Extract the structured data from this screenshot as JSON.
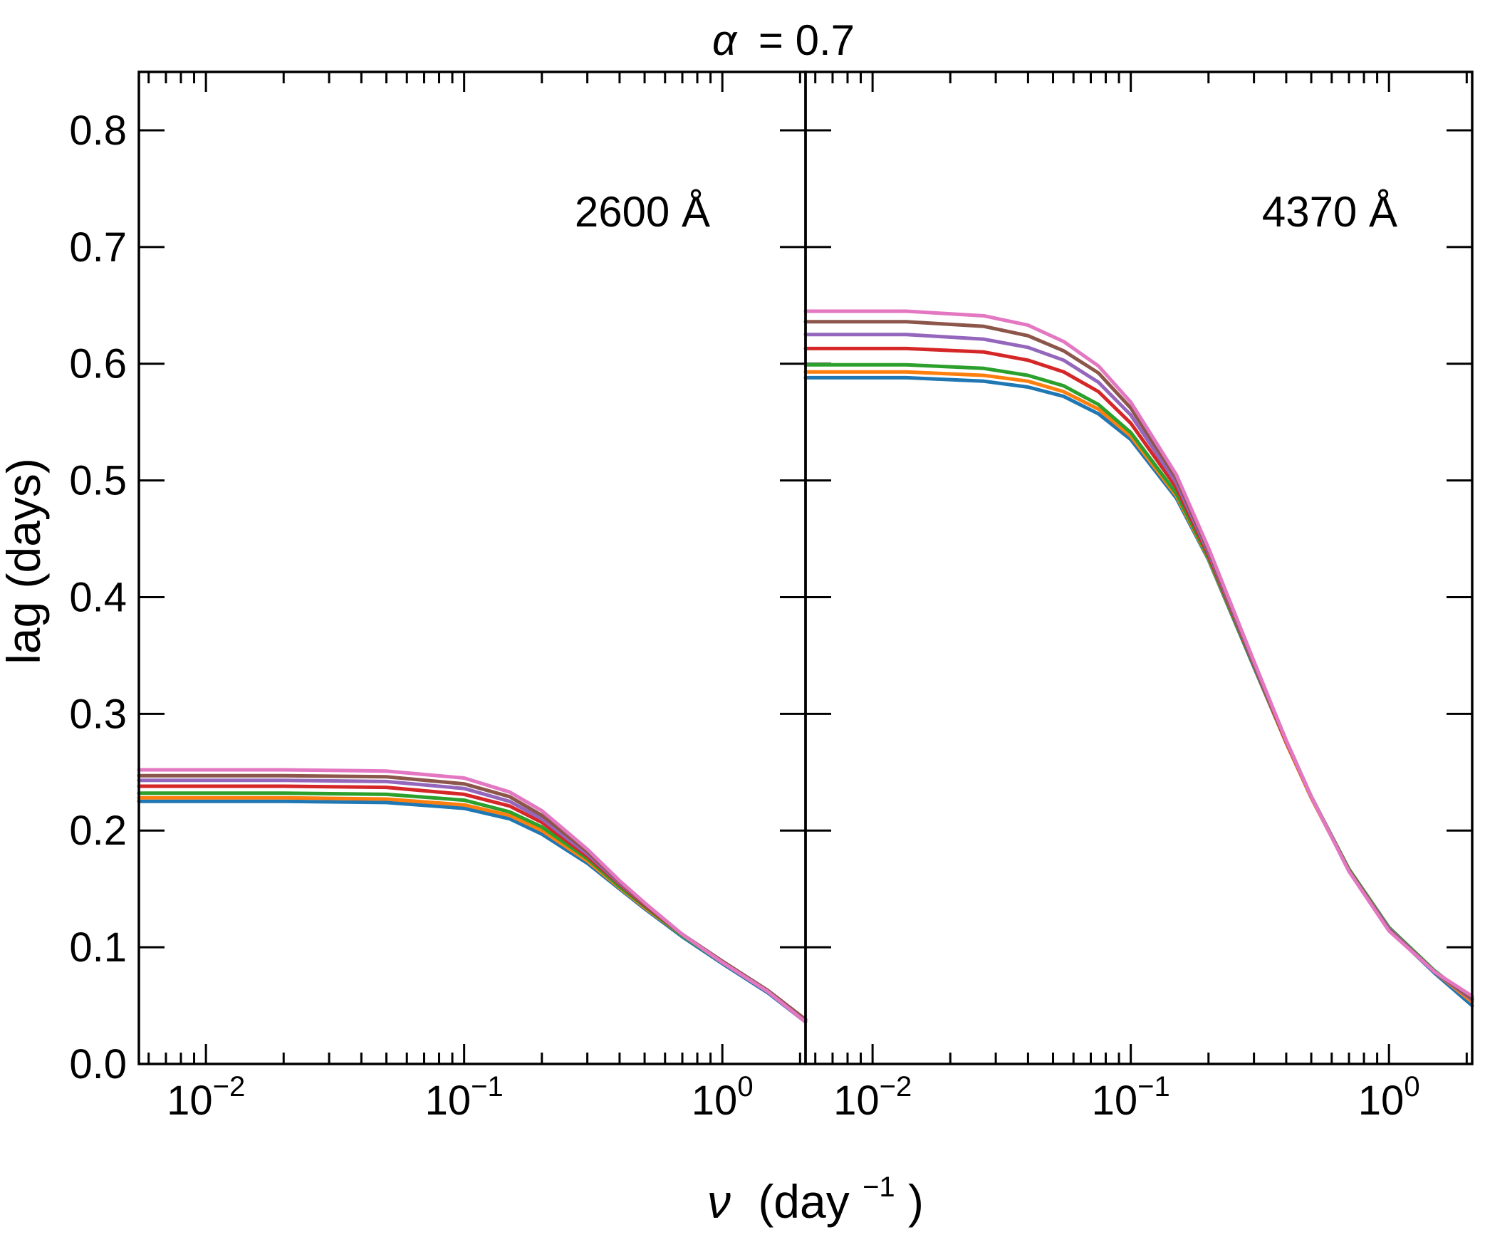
{
  "chart_data": {
    "type": "line",
    "title": "α = 0.7",
    "title_symbol": "α",
    "title_value": "= 0.7",
    "xlabel": "ν (day−1)",
    "xlabel_symbol": "ν",
    "xlabel_text": "(day",
    "xlabel_exp": "−1",
    "xlabel_close": ")",
    "ylabel": "lag (days)",
    "xscale": "log",
    "xlim": [
      0.0055,
      2.1
    ],
    "ylim": [
      0.0,
      0.85
    ],
    "yticks": [
      "0.0",
      "0.1",
      "0.2",
      "0.3",
      "0.4",
      "0.5",
      "0.6",
      "0.7",
      "0.8"
    ],
    "xticks": [
      {
        "base": "10",
        "exp": "−2",
        "value": 0.01
      },
      {
        "base": "10",
        "exp": "−1",
        "value": 0.1
      },
      {
        "base": "10",
        "exp": "0",
        "value": 1
      }
    ],
    "series_colors": [
      "#1f77b4",
      "#ff7f0e",
      "#2ca02c",
      "#d62728",
      "#9467bd",
      "#8c564b",
      "#e377c2"
    ],
    "panels": [
      {
        "label": "2600 Å",
        "series": [
          {
            "name": "blue",
            "color": "#1f77b4",
            "x": [
              0.0055,
              0.02,
              0.05,
              0.1,
              0.15,
              0.2,
              0.3,
              0.4,
              0.5,
              0.7,
              1.0,
              1.5,
              2.1
            ],
            "y": [
              0.225,
              0.225,
              0.224,
              0.219,
              0.21,
              0.197,
              0.172,
              0.15,
              0.133,
              0.109,
              0.086,
              0.061,
              0.036
            ]
          },
          {
            "name": "orange",
            "color": "#ff7f0e",
            "x": [
              0.0055,
              0.02,
              0.05,
              0.1,
              0.15,
              0.2,
              0.3,
              0.4,
              0.5,
              0.7,
              1.0,
              1.5,
              2.1
            ],
            "y": [
              0.228,
              0.228,
              0.227,
              0.222,
              0.213,
              0.2,
              0.174,
              0.151,
              0.134,
              0.11,
              0.087,
              0.062,
              0.037
            ]
          },
          {
            "name": "green",
            "color": "#2ca02c",
            "x": [
              0.0055,
              0.02,
              0.05,
              0.1,
              0.15,
              0.2,
              0.3,
              0.4,
              0.5,
              0.7,
              1.0,
              1.5,
              2.1
            ],
            "y": [
              0.232,
              0.232,
              0.231,
              0.226,
              0.216,
              0.203,
              0.176,
              0.152,
              0.135,
              0.11,
              0.087,
              0.062,
              0.037
            ]
          },
          {
            "name": "red",
            "color": "#d62728",
            "x": [
              0.0055,
              0.02,
              0.05,
              0.1,
              0.15,
              0.2,
              0.3,
              0.4,
              0.5,
              0.7,
              1.0,
              1.5,
              2.1
            ],
            "y": [
              0.238,
              0.238,
              0.237,
              0.231,
              0.221,
              0.207,
              0.178,
              0.154,
              0.136,
              0.111,
              0.088,
              0.063,
              0.038
            ]
          },
          {
            "name": "purple",
            "color": "#9467bd",
            "x": [
              0.0055,
              0.02,
              0.05,
              0.1,
              0.15,
              0.2,
              0.3,
              0.4,
              0.5,
              0.7,
              1.0,
              1.5,
              2.1
            ],
            "y": [
              0.243,
              0.243,
              0.242,
              0.236,
              0.225,
              0.21,
              0.18,
              0.155,
              0.137,
              0.111,
              0.088,
              0.063,
              0.038
            ]
          },
          {
            "name": "brown",
            "color": "#8c564b",
            "x": [
              0.0055,
              0.02,
              0.05,
              0.1,
              0.15,
              0.2,
              0.3,
              0.4,
              0.5,
              0.7,
              1.0,
              1.5,
              2.1
            ],
            "y": [
              0.247,
              0.247,
              0.246,
              0.24,
              0.229,
              0.213,
              0.182,
              0.156,
              0.137,
              0.111,
              0.088,
              0.063,
              0.038
            ]
          },
          {
            "name": "pink",
            "color": "#e377c2",
            "x": [
              0.0055,
              0.02,
              0.05,
              0.1,
              0.15,
              0.2,
              0.3,
              0.4,
              0.5,
              0.7,
              1.0,
              1.5,
              2.1
            ],
            "y": [
              0.252,
              0.252,
              0.251,
              0.245,
              0.233,
              0.217,
              0.184,
              0.157,
              0.138,
              0.111,
              0.087,
              0.062,
              0.036
            ]
          }
        ]
      },
      {
        "label": "4370 Å",
        "series": [
          {
            "name": "blue",
            "color": "#1f77b4",
            "x": [
              0.0055,
              0.0135,
              0.027,
              0.04,
              0.055,
              0.075,
              0.1,
              0.15,
              0.2,
              0.3,
              0.4,
              0.5,
              0.7,
              1.0,
              1.5,
              2.1
            ],
            "y": [
              0.588,
              0.588,
              0.585,
              0.58,
              0.572,
              0.557,
              0.535,
              0.485,
              0.432,
              0.34,
              0.275,
              0.228,
              0.166,
              0.115,
              0.078,
              0.05
            ]
          },
          {
            "name": "orange",
            "color": "#ff7f0e",
            "x": [
              0.0055,
              0.0135,
              0.027,
              0.04,
              0.055,
              0.075,
              0.1,
              0.15,
              0.2,
              0.3,
              0.4,
              0.5,
              0.7,
              1.0,
              1.5,
              2.1
            ],
            "y": [
              0.593,
              0.593,
              0.59,
              0.585,
              0.576,
              0.561,
              0.538,
              0.487,
              0.433,
              0.341,
              0.275,
              0.228,
              0.166,
              0.116,
              0.079,
              0.053
            ]
          },
          {
            "name": "green",
            "color": "#2ca02c",
            "x": [
              0.0055,
              0.0135,
              0.027,
              0.04,
              0.055,
              0.075,
              0.1,
              0.15,
              0.2,
              0.3,
              0.4,
              0.5,
              0.7,
              1.0,
              1.5,
              2.1
            ],
            "y": [
              0.599,
              0.599,
              0.596,
              0.59,
              0.581,
              0.565,
              0.541,
              0.489,
              0.434,
              0.341,
              0.276,
              0.229,
              0.167,
              0.117,
              0.08,
              0.055
            ]
          },
          {
            "name": "red",
            "color": "#d62728",
            "x": [
              0.0055,
              0.0135,
              0.027,
              0.04,
              0.055,
              0.075,
              0.1,
              0.15,
              0.2,
              0.3,
              0.4,
              0.5,
              0.7,
              1.0,
              1.5,
              2.1
            ],
            "y": [
              0.613,
              0.613,
              0.61,
              0.603,
              0.593,
              0.576,
              0.549,
              0.494,
              0.436,
              0.342,
              0.276,
              0.229,
              0.166,
              0.116,
              0.079,
              0.055
            ]
          },
          {
            "name": "purple",
            "color": "#9467bd",
            "x": [
              0.0055,
              0.0135,
              0.027,
              0.04,
              0.055,
              0.075,
              0.1,
              0.15,
              0.2,
              0.3,
              0.4,
              0.5,
              0.7,
              1.0,
              1.5,
              2.1
            ],
            "y": [
              0.625,
              0.625,
              0.621,
              0.614,
              0.603,
              0.584,
              0.556,
              0.498,
              0.438,
              0.343,
              0.277,
              0.229,
              0.166,
              0.116,
              0.079,
              0.055
            ]
          },
          {
            "name": "brown",
            "color": "#8c564b",
            "x": [
              0.0055,
              0.0135,
              0.027,
              0.04,
              0.055,
              0.075,
              0.1,
              0.15,
              0.2,
              0.3,
              0.4,
              0.5,
              0.7,
              1.0,
              1.5,
              2.1
            ],
            "y": [
              0.636,
              0.636,
              0.632,
              0.624,
              0.611,
              0.592,
              0.562,
              0.502,
              0.44,
              0.344,
              0.277,
              0.229,
              0.166,
              0.115,
              0.079,
              0.056
            ]
          },
          {
            "name": "pink",
            "color": "#e377c2",
            "x": [
              0.0055,
              0.0135,
              0.027,
              0.04,
              0.055,
              0.075,
              0.1,
              0.15,
              0.2,
              0.3,
              0.4,
              0.5,
              0.7,
              1.0,
              1.5,
              2.1
            ],
            "y": [
              0.645,
              0.645,
              0.641,
              0.633,
              0.619,
              0.598,
              0.567,
              0.505,
              0.442,
              0.345,
              0.277,
              0.229,
              0.165,
              0.114,
              0.079,
              0.058
            ]
          }
        ]
      }
    ]
  }
}
